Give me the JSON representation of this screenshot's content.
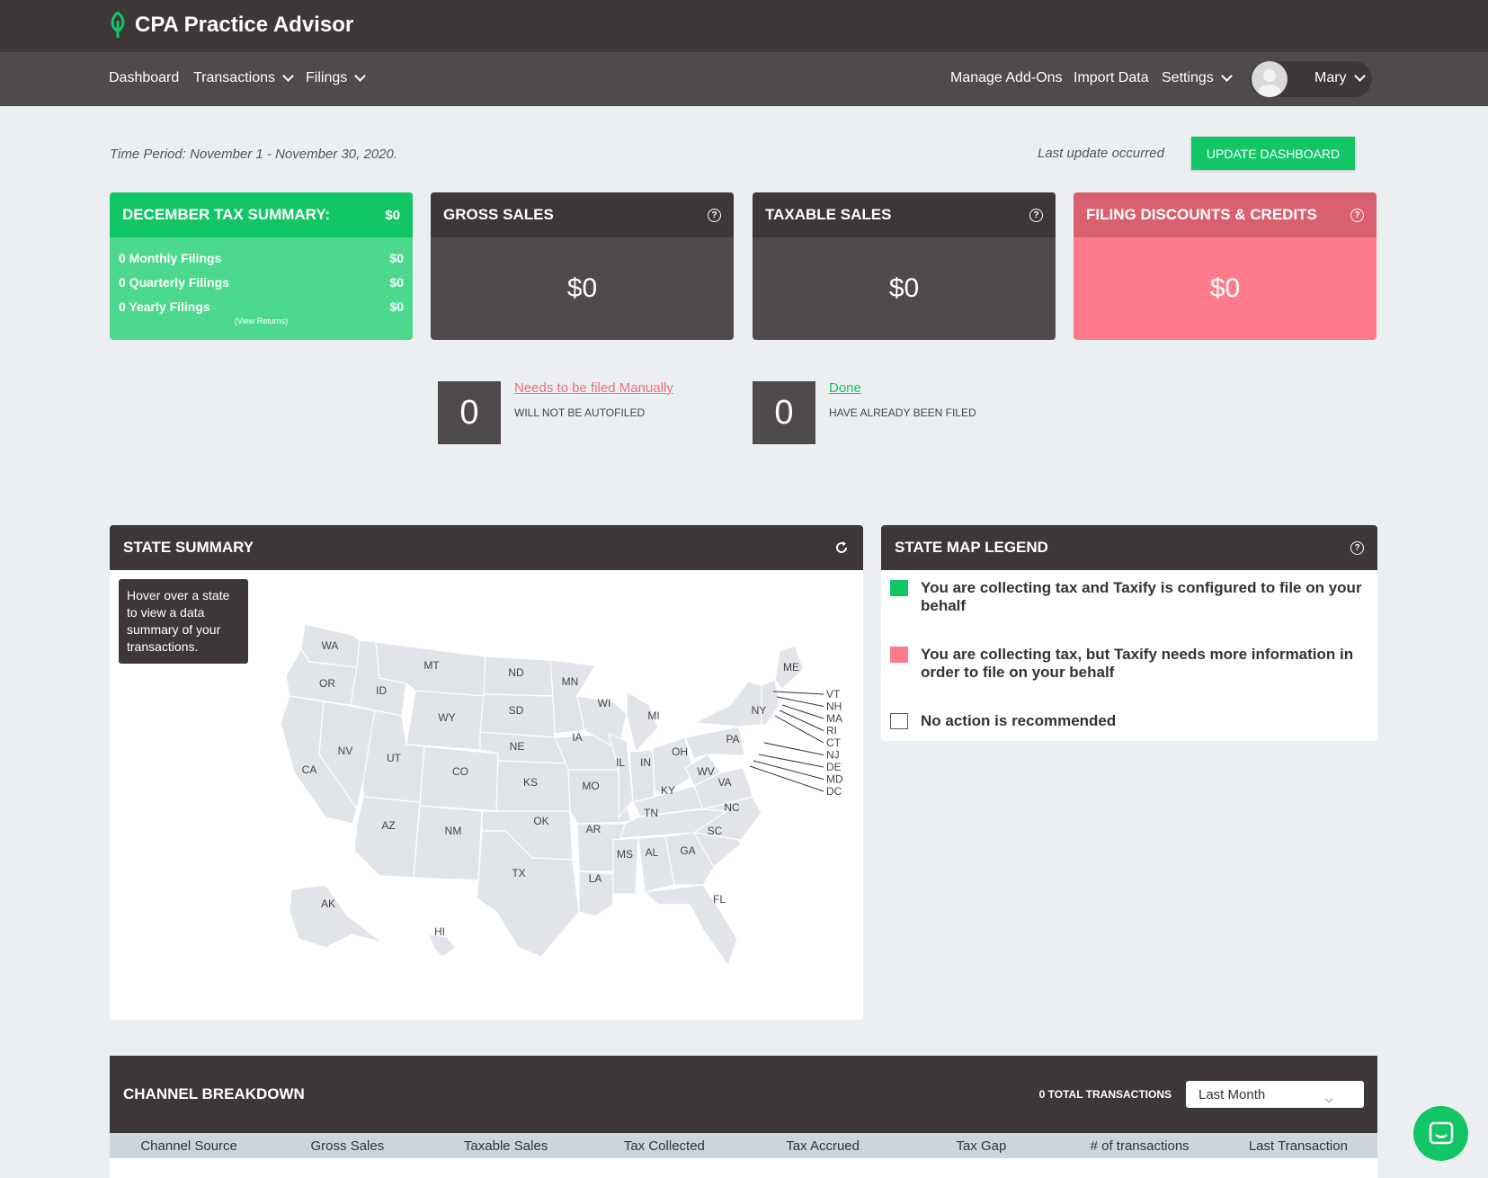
{
  "header": {
    "brand": "CPA Practice Advisor"
  },
  "nav": {
    "dashboard": "Dashboard",
    "transactions": "Transactions",
    "filings": "Filings",
    "manage_addons": "Manage Add-Ons",
    "import_data": "Import Data",
    "settings": "Settings",
    "user_name": "Mary"
  },
  "toolbar": {
    "time_period": "Time Period: November 1 - November 30, 2020.",
    "last_update": "Last update occurred",
    "update_button": "UPDATE DASHBOARD"
  },
  "tax_summary": {
    "title": "DECEMBER TAX SUMMARY:",
    "total": "$0",
    "rows": [
      {
        "label": "0 Monthly Filings",
        "value": "$0"
      },
      {
        "label": "0 Quarterly Filings",
        "value": "$0"
      },
      {
        "label": "0 Yearly Filings",
        "value": "$0"
      }
    ],
    "view_returns": "(View Returns)"
  },
  "gross_sales": {
    "title": "GROSS SALES",
    "value": "$0"
  },
  "taxable_sales": {
    "title": "TAXABLE SALES",
    "value": "$0"
  },
  "filing_discounts": {
    "title": "FILING DISCOUNTS & CREDITS",
    "value": "$0"
  },
  "manual": {
    "count": "0",
    "link": "Needs to be filed Manually",
    "sub": "WILL NOT BE AUTOFILED"
  },
  "done": {
    "count": "0",
    "link": "Done",
    "sub": "HAVE ALREADY BEEN FILED"
  },
  "state_summary": {
    "title": "STATE SUMMARY",
    "tooltip": "Hover over a state to view a data summary of your transactions.",
    "states": [
      "WA",
      "OR",
      "ID",
      "MT",
      "ND",
      "SD",
      "WY",
      "NE",
      "CA",
      "NV",
      "UT",
      "CO",
      "KS",
      "MN",
      "IA",
      "WI",
      "MI",
      "IL",
      "IN",
      "OH",
      "MO",
      "KY",
      "OK",
      "AR",
      "TN",
      "AZ",
      "NM",
      "TX",
      "LA",
      "MS",
      "AL",
      "GA",
      "SC",
      "NC",
      "VA",
      "WV",
      "PA",
      "NY",
      "ME",
      "FL",
      "AK",
      "HI"
    ],
    "ne_states": [
      "VT",
      "NH",
      "MA",
      "RI",
      "CT",
      "NJ",
      "DE",
      "MD",
      "DC"
    ]
  },
  "legend": {
    "title": "STATE MAP LEGEND",
    "items": [
      {
        "label": "You are collecting tax and Taxify is configured to file on your behalf",
        "color": "#12c665"
      },
      {
        "label": "You are collecting tax, but Taxify needs more information in order to file on your behalf",
        "color": "#ff7a8a"
      },
      {
        "label": "No action is recommended",
        "color": "#ffffff"
      }
    ]
  },
  "channel": {
    "title": "CHANNEL BREAKDOWN",
    "total": "0 TOTAL TRANSACTIONS",
    "range": "Last Month",
    "columns": [
      "Channel Source",
      "Gross Sales",
      "Taxable Sales",
      "Tax Collected",
      "Tax Accrued",
      "Tax Gap",
      "# of transactions",
      "Last Transaction"
    ]
  },
  "colors": {
    "green": "#12c665",
    "dark": "#3d3739",
    "pink": "#ff7a8a",
    "slate": "#4f4a4c"
  }
}
